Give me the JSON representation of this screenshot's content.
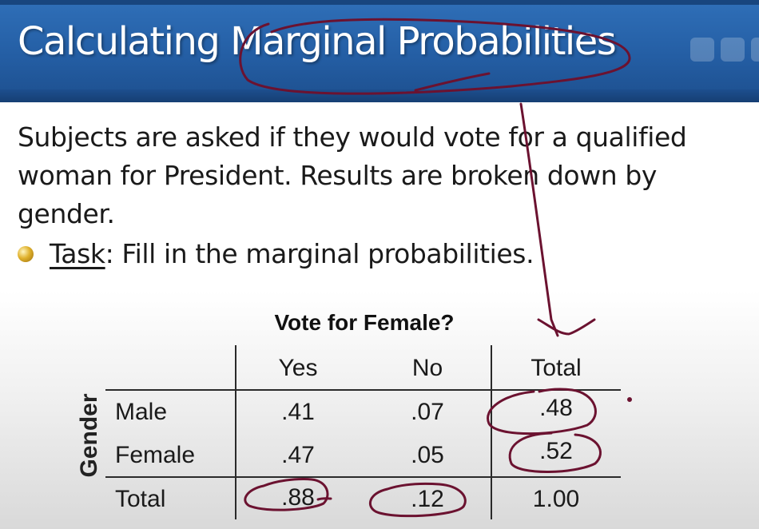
{
  "slide": {
    "title": "Calculating Marginal Probabilities",
    "intro": "Subjects are asked if they would vote for a qualified woman for President.  Results are broken down by gender.",
    "task_label": "Task",
    "task_text": ": Fill in the marginal probabilities."
  },
  "table": {
    "caption": "Vote for Female?",
    "row_group_label": "Gender",
    "columns": [
      "Yes",
      "No",
      "Total"
    ],
    "rows": [
      {
        "label": "Male",
        "values": [
          ".41",
          ".07",
          ".48"
        ]
      },
      {
        "label": "Female",
        "values": [
          ".47",
          ".05",
          ".52"
        ]
      },
      {
        "label": "Total",
        "values": [
          ".88",
          ".12",
          "1.00"
        ]
      }
    ]
  },
  "colors": {
    "header_blue": "#245ea4",
    "ink": "#6b1230",
    "bullet_gold": "#e0b12c"
  },
  "annotations": [
    "circle-around-marginal",
    "arrow-to-total-column",
    "circle-male-total",
    "circle-female-total",
    "circle-total-yes",
    "circle-total-no"
  ]
}
